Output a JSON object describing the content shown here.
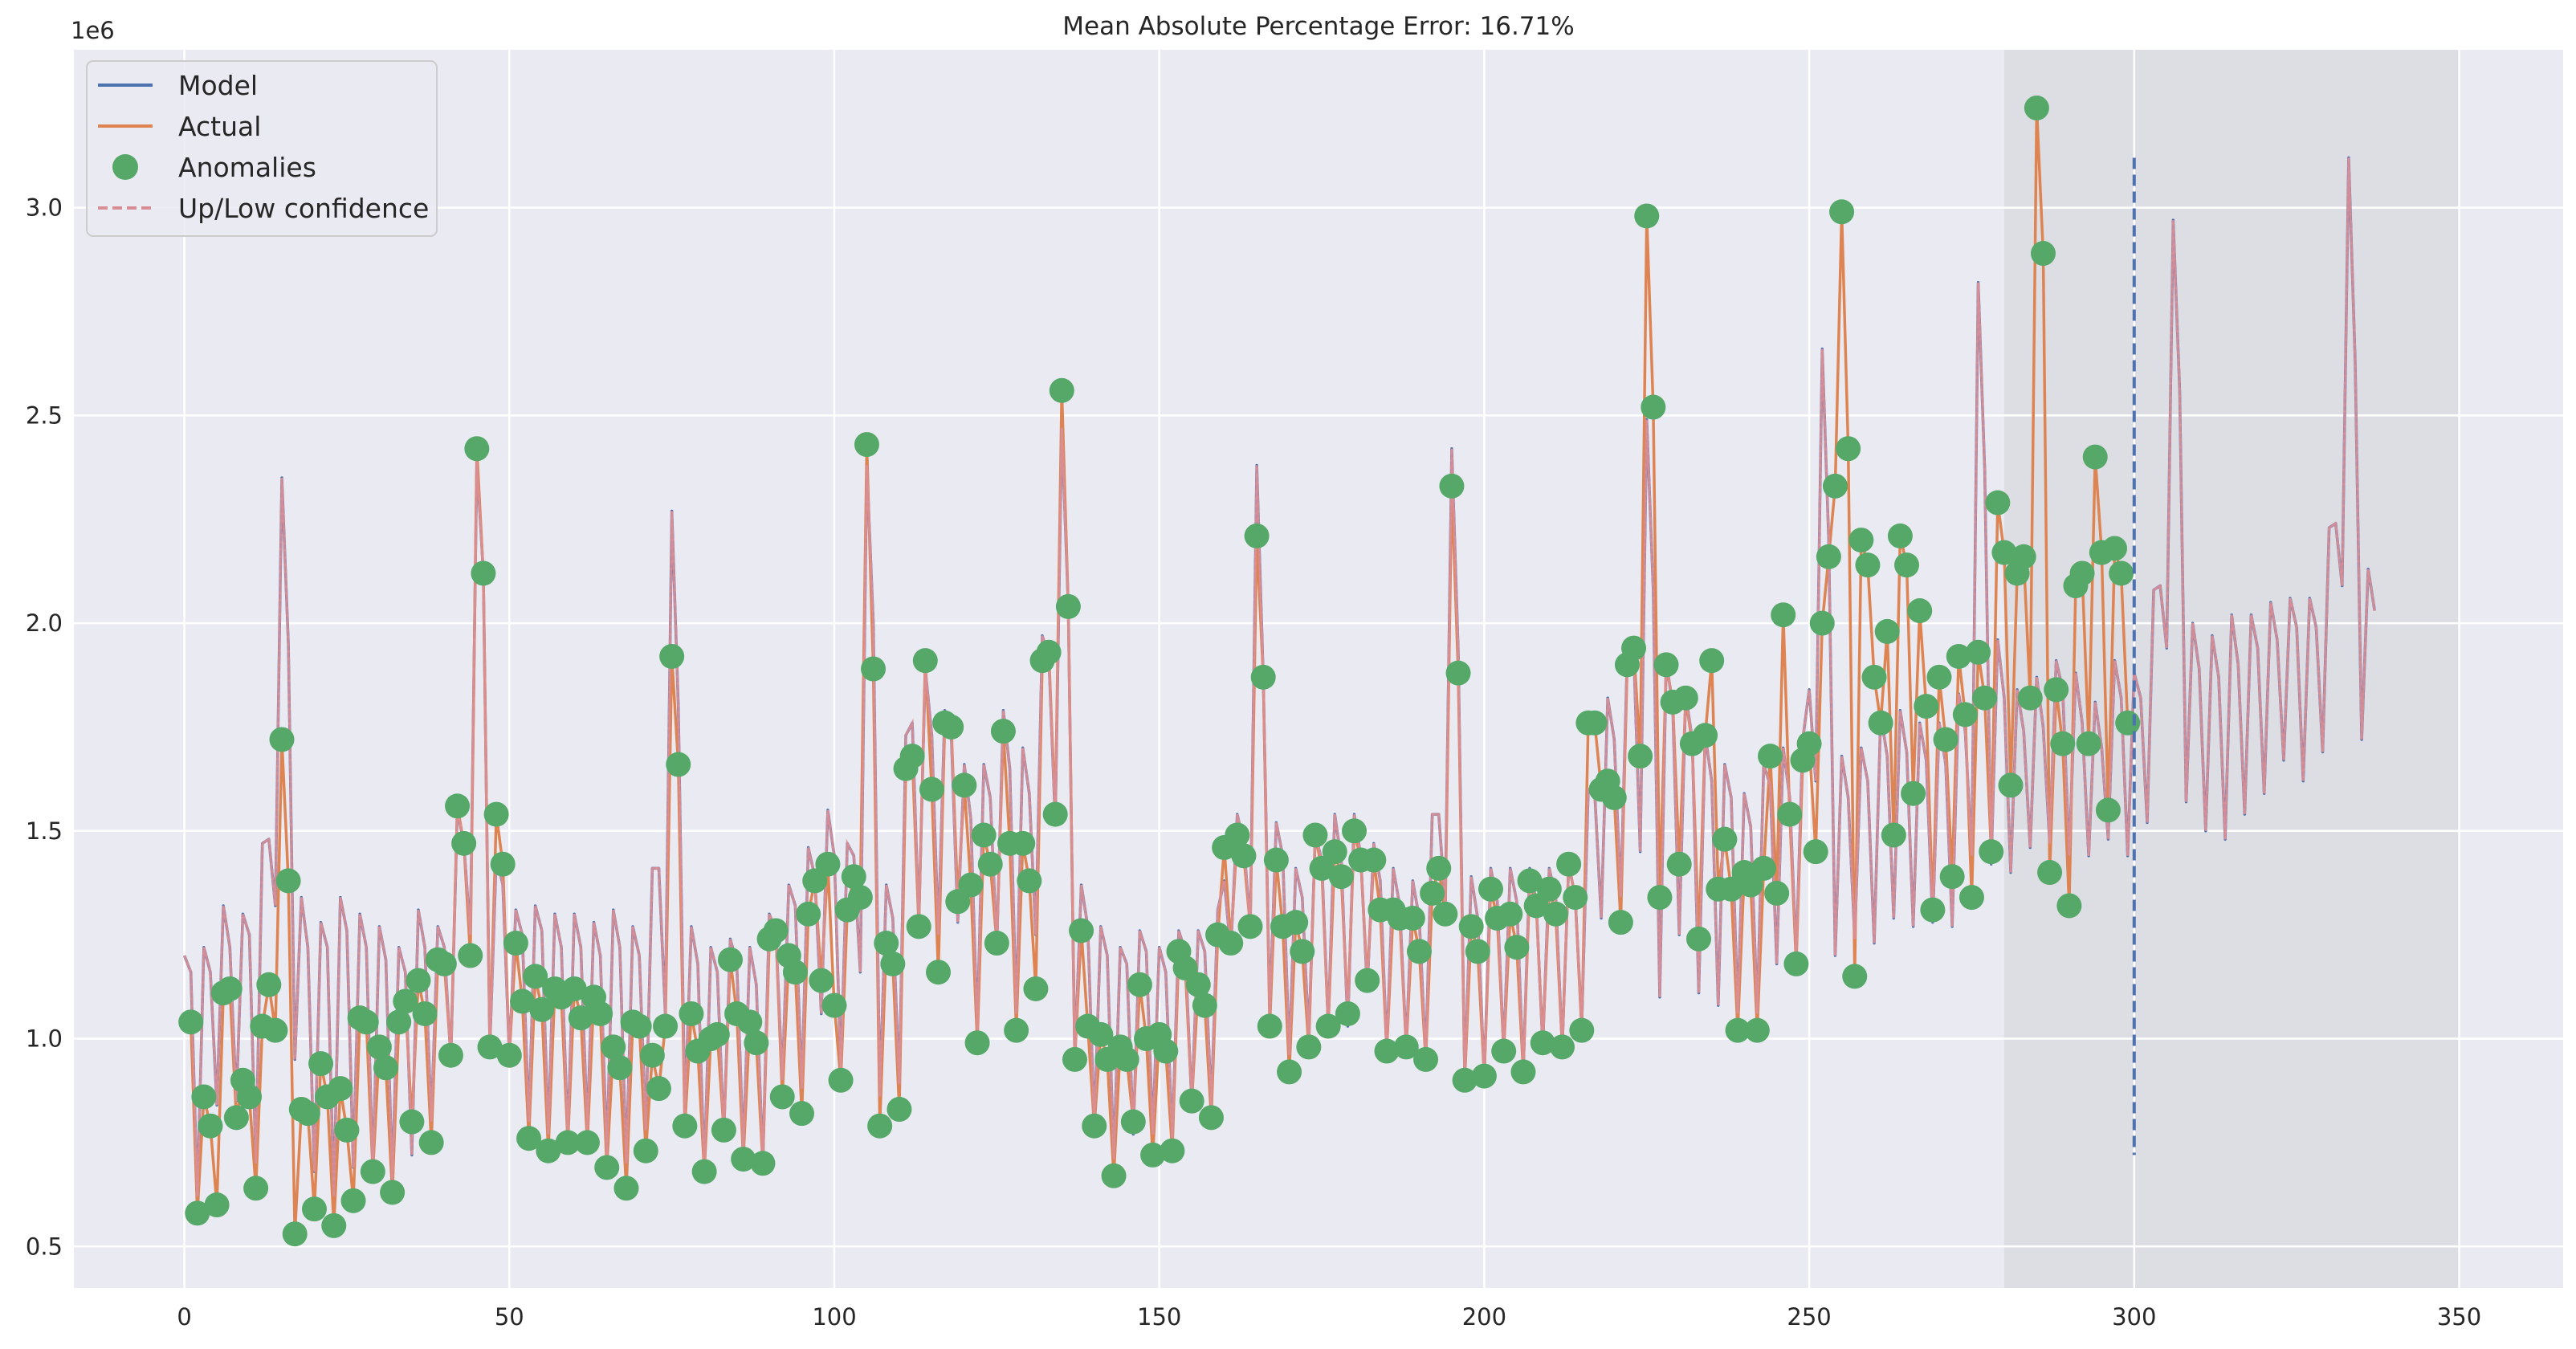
{
  "chart_data": {
    "type": "line",
    "title": "Mean Absolute Percentage Error: 16.71%",
    "xlabel": "",
    "ylabel": "",
    "y_offset_label": "1e6",
    "y_multiplier": 1000000,
    "xlim": [
      -17,
      366
    ],
    "ylim": [
      0.4,
      3.38
    ],
    "x_ticks": [
      0,
      50,
      100,
      150,
      200,
      250,
      300,
      350
    ],
    "y_ticks": [
      0.5,
      1.0,
      1.5,
      2.0,
      2.5,
      3.0
    ],
    "y_tick_labels": [
      "0.5",
      "1.0",
      "1.5",
      "2.0",
      "2.5",
      "3.0"
    ],
    "grid": true,
    "legend_position": "top-left",
    "colors": {
      "background": "#eaeaf2",
      "grid": "#ffffff",
      "model": "#4c72b0",
      "actual": "#dd8452",
      "anomalies": "#55a868",
      "confidence": "#d98e96",
      "forecast_region": "#d8d8df",
      "vline": "#4c72b0"
    },
    "legend": [
      {
        "label": "Model",
        "style": "line",
        "color": "#4c72b0"
      },
      {
        "label": "Actual",
        "style": "line",
        "color": "#dd8452"
      },
      {
        "label": "Anomalies",
        "style": "marker",
        "color": "#55a868"
      },
      {
        "label": "Up/Low confidence",
        "style": "dashed",
        "color": "#d98e96"
      }
    ],
    "forecast_span": [
      280,
      350
    ],
    "vline": {
      "x": 300,
      "ymin": 0.72,
      "ymax": 3.12
    },
    "series": [
      {
        "name": "Actual",
        "x_start": 1,
        "values": [
          1.04,
          0.58,
          0.86,
          0.79,
          0.6,
          1.11,
          1.12,
          0.81,
          0.9,
          0.86,
          0.64,
          1.03,
          1.13,
          1.02,
          1.72,
          1.38,
          0.53,
          0.83,
          0.82,
          0.59,
          0.94,
          0.86,
          0.55,
          0.88,
          0.78,
          0.61,
          1.05,
          1.04,
          0.68,
          0.98,
          0.93,
          0.63,
          1.04,
          1.09,
          0.8,
          1.14,
          1.06,
          0.75,
          1.19,
          1.18,
          0.96,
          1.56,
          1.47,
          1.2,
          2.42,
          2.12,
          0.98,
          1.54,
          1.42,
          0.96,
          1.23,
          1.09,
          0.76,
          1.15,
          1.07,
          0.73,
          1.12,
          1.1,
          0.75,
          1.12,
          1.05,
          0.75,
          1.1,
          1.06,
          0.69,
          0.98,
          0.93,
          0.64,
          1.04,
          1.03,
          0.73,
          0.96,
          0.88,
          1.03,
          1.92,
          1.66,
          0.79,
          1.06,
          0.97,
          0.68,
          1.0,
          1.01,
          0.78,
          1.19,
          1.06,
          0.71,
          1.04,
          0.99,
          0.7,
          1.24,
          1.26,
          0.86,
          1.2,
          1.16,
          0.82,
          1.3,
          1.38,
          1.14,
          1.42,
          1.08,
          0.9,
          1.31,
          1.39,
          1.34,
          2.43,
          1.89,
          0.79,
          1.23,
          1.18,
          0.83,
          1.65,
          1.68,
          1.27,
          1.91,
          1.6,
          1.16,
          1.76,
          1.75,
          1.33,
          1.61,
          1.37,
          0.99,
          1.49,
          1.42,
          1.23,
          1.74,
          1.47,
          1.02,
          1.47,
          1.38,
          1.12,
          1.91,
          1.93,
          1.54,
          2.56,
          2.04,
          0.95,
          1.26,
          1.03,
          0.79,
          1.01,
          0.95,
          0.67,
          0.98,
          0.95,
          0.8,
          1.13,
          1.0,
          0.72,
          1.01,
          0.97,
          0.73,
          1.21,
          1.17,
          0.85,
          1.13,
          1.08,
          0.81,
          1.25,
          1.46,
          1.23,
          1.49,
          1.44,
          1.27,
          2.21,
          1.87,
          1.03,
          1.43,
          1.27,
          0.92,
          1.28,
          1.21,
          0.98,
          1.49,
          1.41,
          1.03,
          1.45,
          1.39,
          1.06,
          1.5,
          1.43,
          1.14,
          1.43,
          1.31,
          0.97,
          1.31,
          1.29,
          0.98,
          1.29,
          1.21,
          0.95,
          1.35,
          1.41,
          1.3,
          2.33,
          1.88,
          0.9,
          1.27,
          1.21,
          0.91,
          1.36,
          1.29,
          0.97,
          1.3,
          1.22,
          0.92,
          1.38,
          1.32,
          0.99,
          1.36,
          1.3,
          0.98,
          1.42,
          1.34,
          1.02,
          1.76,
          1.76,
          1.6,
          1.62,
          1.58,
          1.28,
          1.9,
          1.94,
          1.68,
          2.98,
          2.52,
          1.34,
          1.9,
          1.81,
          1.42,
          1.82,
          1.71,
          1.24,
          1.73,
          1.91,
          1.36,
          1.48,
          1.36,
          1.02,
          1.4,
          1.37,
          1.02,
          1.41,
          1.68,
          1.35,
          2.02,
          1.54,
          1.18,
          1.67,
          1.71,
          1.45,
          2.0,
          2.16,
          2.33,
          2.99,
          2.42,
          1.15,
          2.2,
          2.14,
          1.87,
          1.76,
          1.98,
          1.49,
          2.21,
          2.14,
          1.59,
          2.03,
          1.8,
          1.31,
          1.87,
          1.72,
          1.39,
          1.92,
          1.78,
          1.34,
          1.93,
          1.82,
          1.45,
          2.29,
          2.17,
          1.61,
          2.12,
          2.16,
          1.82,
          3.24,
          2.89,
          1.4,
          1.84,
          1.71,
          1.32,
          2.09,
          2.12,
          1.71,
          2.4,
          2.17,
          1.55,
          2.18,
          2.12,
          1.76
        ]
      },
      {
        "name": "Model",
        "x_start": 0,
        "values": [
          1.2,
          1.16,
          0.62,
          1.22,
          1.16,
          0.84,
          1.32,
          1.22,
          0.85,
          1.3,
          1.25,
          0.7,
          1.47,
          1.48,
          1.32,
          2.35,
          1.95,
          0.95,
          1.34,
          1.22,
          0.68,
          1.28,
          1.22,
          0.62,
          1.34,
          1.26,
          0.69,
          1.3,
          1.22,
          0.68,
          1.27,
          1.19,
          0.66,
          1.22,
          1.16,
          0.72,
          1.31,
          1.22,
          0.8,
          1.27,
          1.22,
          0.95,
          1.55,
          1.47,
          1.25,
          2.39,
          2.12,
          0.98,
          1.44,
          1.37,
          0.96,
          1.31,
          1.25,
          0.8,
          1.32,
          1.26,
          0.77,
          1.3,
          1.22,
          0.76,
          1.3,
          1.22,
          0.78,
          1.28,
          1.2,
          0.72,
          1.31,
          1.22,
          0.7,
          1.27,
          1.2,
          0.78,
          1.41,
          1.41,
          1.06,
          2.27,
          1.8,
          0.82,
          1.27,
          1.18,
          0.68,
          1.22,
          1.16,
          0.77,
          1.24,
          1.18,
          0.73,
          1.22,
          1.13,
          0.7,
          1.3,
          1.26,
          0.9,
          1.37,
          1.32,
          0.88,
          1.46,
          1.39,
          1.06,
          1.55,
          1.44,
          0.92,
          1.47,
          1.44,
          1.16,
          2.38,
          2.0,
          0.86,
          1.37,
          1.29,
          0.89,
          1.73,
          1.76,
          1.28,
          1.89,
          1.73,
          1.25,
          1.79,
          1.73,
          1.28,
          1.66,
          1.53,
          1.02,
          1.66,
          1.58,
          1.22,
          1.79,
          1.65,
          1.06,
          1.7,
          1.59,
          1.25,
          1.97,
          1.92,
          1.52,
          2.47,
          2.04,
          0.95,
          1.37,
          1.27,
          0.79,
          1.27,
          1.2,
          0.71,
          1.22,
          1.18,
          0.77,
          1.26,
          1.21,
          0.77,
          1.22,
          1.16,
          0.76,
          1.26,
          1.21,
          0.84,
          1.26,
          1.21,
          0.84,
          1.31,
          1.38,
          1.21,
          1.54,
          1.47,
          1.27,
          2.38,
          1.87,
          1.06,
          1.52,
          1.44,
          0.96,
          1.41,
          1.34,
          1.0,
          1.49,
          1.43,
          1.03,
          1.54,
          1.43,
          1.03,
          1.54,
          1.44,
          1.12,
          1.47,
          1.38,
          0.97,
          1.41,
          1.32,
          0.98,
          1.38,
          1.29,
          0.95,
          1.54,
          1.54,
          1.32,
          2.42,
          1.93,
          0.9,
          1.39,
          1.29,
          0.91,
          1.41,
          1.33,
          0.97,
          1.41,
          1.33,
          0.92,
          1.41,
          1.33,
          0.98,
          1.41,
          1.34,
          0.98,
          1.42,
          1.34,
          1.03,
          1.6,
          1.59,
          1.29,
          1.82,
          1.72,
          1.34,
          1.92,
          1.93,
          1.45,
          2.49,
          2.08,
          1.1,
          1.91,
          1.8,
          1.25,
          1.83,
          1.72,
          1.11,
          1.73,
          1.62,
          1.08,
          1.66,
          1.58,
          1.06,
          1.59,
          1.51,
          1.06,
          1.66,
          1.61,
          1.18,
          1.7,
          1.58,
          1.2,
          1.72,
          1.84,
          1.62,
          2.66,
          2.2,
          1.2,
          1.68,
          1.58,
          1.24,
          1.7,
          1.62,
          1.23,
          1.78,
          1.68,
          1.29,
          1.79,
          1.69,
          1.27,
          1.76,
          1.67,
          1.28,
          1.76,
          1.66,
          1.27,
          1.83,
          1.74,
          1.44,
          2.82,
          2.37,
          1.42,
          1.96,
          1.82,
          1.4,
          1.84,
          1.74,
          1.46,
          1.87,
          1.75,
          1.47,
          1.91,
          1.84,
          1.44,
          1.88,
          1.76,
          1.44,
          1.81,
          1.7,
          1.48,
          1.91,
          1.82,
          1.44,
          1.88,
          1.82,
          1.52,
          2.08,
          2.09,
          1.94,
          2.97,
          2.56,
          1.57,
          2.0,
          1.89,
          1.5,
          1.97,
          1.87,
          1.48,
          2.02,
          1.9,
          1.54,
          2.02,
          1.94,
          1.59,
          2.05,
          1.96,
          1.67,
          2.06,
          1.99,
          1.62,
          2.06,
          1.99,
          1.69,
          2.23,
          2.24,
          2.09,
          3.12,
          2.63,
          1.72,
          2.13,
          2.03
        ]
      }
    ],
    "anomalies": {
      "name": "Anomalies",
      "x_start": 1,
      "values": [
        1.04,
        0.58,
        0.86,
        0.79,
        0.6,
        1.11,
        1.12,
        0.81,
        0.9,
        0.86,
        0.64,
        1.03,
        1.13,
        1.02,
        1.72,
        1.38,
        0.53,
        0.83,
        0.82,
        0.59,
        0.94,
        0.86,
        0.55,
        0.88,
        0.78,
        0.61,
        1.05,
        1.04,
        0.68,
        0.98,
        0.93,
        0.63,
        1.04,
        1.09,
        0.8,
        1.14,
        1.06,
        0.75,
        1.19,
        1.18,
        0.96,
        1.56,
        1.47,
        1.2,
        2.42,
        2.12,
        0.98,
        1.54,
        1.42,
        0.96,
        1.23,
        1.09,
        0.76,
        1.15,
        1.07,
        0.73,
        1.12,
        1.1,
        0.75,
        1.12,
        1.05,
        0.75,
        1.1,
        1.06,
        0.69,
        0.98,
        0.93,
        0.64,
        1.04,
        1.03,
        0.73,
        0.96,
        0.88,
        1.03,
        1.92,
        1.66,
        0.79,
        1.06,
        0.97,
        0.68,
        1.0,
        1.01,
        0.78,
        1.19,
        1.06,
        0.71,
        1.04,
        0.99,
        0.7,
        1.24,
        1.26,
        0.86,
        1.2,
        1.16,
        0.82,
        1.3,
        1.38,
        1.14,
        1.42,
        1.08,
        0.9,
        1.31,
        1.39,
        1.34,
        2.43,
        1.89,
        0.79,
        1.23,
        1.18,
        0.83,
        1.65,
        1.68,
        1.27,
        1.91,
        1.6,
        1.16,
        1.76,
        1.75,
        1.33,
        1.61,
        1.37,
        0.99,
        1.49,
        1.42,
        1.23,
        1.74,
        1.47,
        1.02,
        1.47,
        1.38,
        1.12,
        1.91,
        1.93,
        1.54,
        2.56,
        2.04,
        0.95,
        1.26,
        1.03,
        0.79,
        1.01,
        0.95,
        0.67,
        0.98,
        0.95,
        0.8,
        1.13,
        1.0,
        0.72,
        1.01,
        0.97,
        0.73,
        1.21,
        1.17,
        0.85,
        1.13,
        1.08,
        0.81,
        1.25,
        1.46,
        1.23,
        1.49,
        1.44,
        1.27,
        2.21,
        1.87,
        1.03,
        1.43,
        1.27,
        0.92,
        1.28,
        1.21,
        0.98,
        1.49,
        1.41,
        1.03,
        1.45,
        1.39,
        1.06,
        1.5,
        1.43,
        1.14,
        1.43,
        1.31,
        0.97,
        1.31,
        1.29,
        0.98,
        1.29,
        1.21,
        0.95,
        1.35,
        1.41,
        1.3,
        2.33,
        1.88,
        0.9,
        1.27,
        1.21,
        0.91,
        1.36,
        1.29,
        0.97,
        1.3,
        1.22,
        0.92,
        1.38,
        1.32,
        0.99,
        1.36,
        1.3,
        0.98,
        1.42,
        1.34,
        1.02,
        1.76,
        1.76,
        1.6,
        1.62,
        1.58,
        1.28,
        1.9,
        1.94,
        1.68,
        2.98,
        2.52,
        1.34,
        1.9,
        1.81,
        1.42,
        1.82,
        1.71,
        1.24,
        1.73,
        1.91,
        1.36,
        1.48,
        1.36,
        1.02,
        1.4,
        1.37,
        1.02,
        1.41,
        1.68,
        1.35,
        2.02,
        1.54,
        1.18,
        1.67,
        1.71,
        1.45,
        2.0,
        2.16,
        2.33,
        2.99,
        2.42,
        1.15,
        2.2,
        2.14,
        1.87,
        1.76,
        1.98,
        1.49,
        2.21,
        2.14,
        1.59,
        2.03,
        1.8,
        1.31,
        1.87,
        1.72,
        1.39,
        1.92,
        1.78,
        1.34,
        1.93,
        1.82,
        1.45,
        2.29,
        2.17,
        1.61,
        2.12,
        2.16,
        1.82,
        3.24,
        2.89,
        1.4,
        1.84,
        1.71,
        1.32,
        2.09,
        2.12,
        1.71,
        2.4,
        2.17,
        1.55,
        2.18,
        2.12,
        1.76
      ]
    }
  }
}
